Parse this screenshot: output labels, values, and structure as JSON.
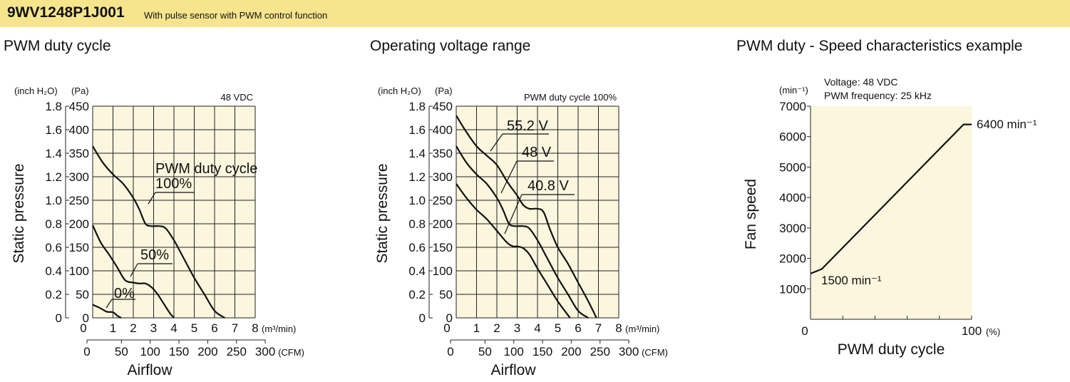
{
  "header": {
    "model": "9WV1248P1J001",
    "subtitle": "With pulse sensor with PWM control function"
  },
  "colors": {
    "header_bg": "#f6e58d",
    "plot_bg": "#fbf6dd",
    "line": "#111111"
  },
  "chart_data": [
    {
      "type": "line",
      "title": "PWM duty cycle",
      "ylabel": "Static pressure",
      "xlabel": "Airflow",
      "y_unit_left": "(inch H₂O)",
      "y_unit_right": "(Pa)",
      "x_unit_top": "(m³/min)",
      "x_unit_bottom": "(CFM)",
      "condition": "48 VDC",
      "x_ticks": [
        "0",
        "1",
        "2",
        "3",
        "4",
        "5",
        "6",
        "7",
        "8"
      ],
      "x2_ticks": [
        "0",
        "50",
        "100",
        "150",
        "200",
        "250",
        "300"
      ],
      "y_ticks_pa": [
        "0",
        "50",
        "100",
        "150",
        "200",
        "250",
        "300",
        "350",
        "400",
        "450"
      ],
      "y_ticks_inch": [
        "0",
        "0.2",
        "0.4",
        "0.6",
        "0.8",
        "1.0",
        "1.2",
        "1.4",
        "1.6",
        "1.8"
      ],
      "xlim": [
        0,
        8
      ],
      "ylim": [
        0,
        450
      ],
      "series": [
        {
          "name": "100%",
          "x": [
            0,
            0.5,
            1.0,
            1.5,
            2.0,
            2.3,
            2.6,
            2.9,
            3.3,
            3.6,
            4.0,
            4.5,
            5.0,
            5.5,
            6.0,
            6.5
          ],
          "y": [
            365,
            330,
            305,
            285,
            255,
            230,
            200,
            195,
            195,
            190,
            165,
            125,
            85,
            50,
            15,
            0
          ]
        },
        {
          "name": "50%",
          "x": [
            0,
            0.4,
            0.8,
            1.2,
            1.6,
            2.0,
            2.3,
            2.6,
            2.9,
            3.2,
            3.5,
            3.8,
            4.0
          ],
          "y": [
            197,
            160,
            135,
            108,
            80,
            75,
            73,
            73,
            65,
            50,
            30,
            10,
            0
          ]
        },
        {
          "name": "0%",
          "x": [
            0,
            0.4,
            0.7,
            1.0,
            1.2,
            1.4
          ],
          "y": [
            28,
            20,
            13,
            12,
            5,
            0
          ]
        }
      ],
      "annotations": [
        "PWM duty cycle",
        "100%",
        "50%",
        "0%"
      ]
    },
    {
      "type": "line",
      "title": "Operating voltage range",
      "ylabel": "Static pressure",
      "xlabel": "Airflow",
      "y_unit_left": "(inch H₂O)",
      "y_unit_right": "(Pa)",
      "x_unit_top": "(m³/min)",
      "x_unit_bottom": "(CFM)",
      "condition": "PWM duty cycle 100%",
      "x_ticks": [
        "0",
        "1",
        "2",
        "3",
        "4",
        "5",
        "6",
        "7",
        "8"
      ],
      "x2_ticks": [
        "0",
        "50",
        "100",
        "150",
        "200",
        "250",
        "300"
      ],
      "y_ticks_pa": [
        "0",
        "50",
        "100",
        "150",
        "200",
        "250",
        "300",
        "350",
        "400",
        "450"
      ],
      "y_ticks_inch": [
        "0",
        "0.2",
        "0.4",
        "0.6",
        "0.8",
        "1.0",
        "1.2",
        "1.4",
        "1.6",
        "1.8"
      ],
      "xlim": [
        0,
        8
      ],
      "ylim": [
        0,
        450
      ],
      "series": [
        {
          "name": "55.2 V",
          "x": [
            0,
            0.5,
            1.0,
            1.5,
            2.0,
            2.5,
            3.0,
            3.3,
            3.6,
            4.0,
            4.3,
            4.6,
            5.0,
            5.5,
            6.0,
            6.5,
            6.9
          ],
          "y": [
            430,
            395,
            365,
            345,
            325,
            290,
            260,
            240,
            232,
            232,
            225,
            190,
            150,
            115,
            75,
            35,
            0
          ]
        },
        {
          "name": "48 V",
          "x": [
            0,
            0.5,
            1.0,
            1.5,
            2.0,
            2.3,
            2.6,
            2.9,
            3.3,
            3.6,
            4.0,
            4.5,
            5.0,
            5.5,
            6.0,
            6.5
          ],
          "y": [
            365,
            330,
            305,
            285,
            255,
            230,
            200,
            195,
            195,
            190,
            165,
            125,
            85,
            50,
            15,
            0
          ]
        },
        {
          "name": "40.8 V",
          "x": [
            0,
            0.5,
            1.0,
            1.5,
            2.0,
            2.5,
            2.8,
            3.0,
            3.3,
            3.6,
            4.0,
            4.5,
            5.0,
            5.6
          ],
          "y": [
            285,
            255,
            230,
            210,
            185,
            160,
            152,
            152,
            148,
            135,
            105,
            70,
            35,
            0
          ]
        }
      ],
      "annotations": [
        "55.2 V",
        "48 V",
        "40.8 V"
      ]
    },
    {
      "type": "line",
      "title": "PWM duty - Speed characteristics example",
      "ylabel": "Fan speed",
      "xlabel": "PWM duty cycle",
      "y_unit": "(min⁻¹)",
      "x_unit": "(%)",
      "conditions": [
        "Voltage: 48 VDC",
        "PWM frequency: 25 kHz"
      ],
      "x_ticks": [
        "0",
        "100"
      ],
      "y_ticks": [
        "1000",
        "2000",
        "3000",
        "4000",
        "5000",
        "6000",
        "7000"
      ],
      "xlim": [
        0,
        100
      ],
      "ylim": [
        0,
        7000
      ],
      "series": [
        {
          "x": [
            0,
            7,
            95,
            100
          ],
          "y": [
            1500,
            1650,
            6400,
            6400
          ]
        }
      ],
      "annotations": [
        "6400 min⁻¹",
        "1500 min⁻¹"
      ]
    }
  ]
}
